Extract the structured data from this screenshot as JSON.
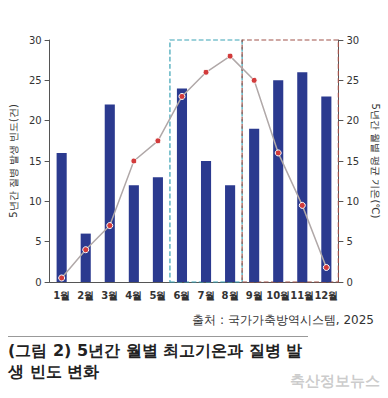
{
  "chart_data": {
    "type": "bar",
    "title": "(그림 2) 5년간 월별 최고기온과 질병 발생 빈도 변화",
    "annotations": [
      "출처 : 국가가축방역시스템, 2025",
      "축산정보뉴스"
    ],
    "y_label": "5년간 질병 발생 빈도(건)",
    "y2_label": "5년간 월별 평균 기온(℃)",
    "categories": [
      "1월",
      "2월",
      "3월",
      "4월",
      "5월",
      "6월",
      "7월",
      "8월",
      "9월",
      "10월",
      "11월",
      "12월"
    ],
    "series": [
      {
        "name": "질병 발생 빈도",
        "type": "bar",
        "color": "#2b3a8f",
        "values": [
          16,
          6,
          22,
          12,
          13,
          24,
          15,
          12,
          19,
          25,
          26,
          23
        ]
      },
      {
        "name": "월별 평균 기온",
        "type": "line",
        "axis": "y2",
        "color": "#b0a8a8",
        "marker": "circle",
        "values": [
          0.5,
          4,
          7,
          15,
          17.5,
          23,
          26,
          28,
          25,
          16,
          9.5,
          1.8
        ]
      }
    ],
    "ylim": [
      0,
      30
    ],
    "yticks": [
      0,
      5,
      10,
      15,
      20,
      25,
      30
    ],
    "y2lim": [
      0,
      30
    ],
    "y2ticks": [
      0,
      5,
      10,
      15,
      20,
      25,
      30
    ],
    "grid": false
  }
}
